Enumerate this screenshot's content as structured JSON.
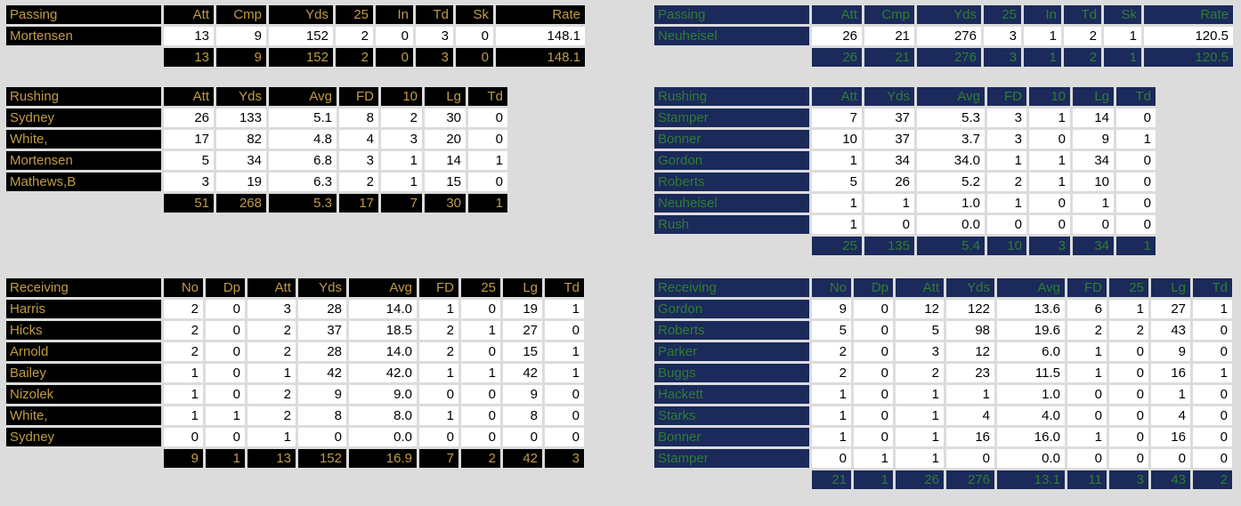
{
  "page": {
    "background_color": "#dcdcdc",
    "data_cell_background": "#ffffff",
    "data_cell_text_color": "#000000"
  },
  "teams": [
    {
      "side": "left",
      "theme": {
        "cell_background": "#000000",
        "text_color": "#c09c43"
      },
      "passing": {
        "title": "Passing",
        "columns": [
          "Att",
          "Cmp",
          "Yds",
          "25",
          "In",
          "Td",
          "Sk",
          "Rate"
        ],
        "rows": [
          {
            "name": "Mortensen",
            "values": [
              "13",
              "9",
              "152",
              "2",
              "0",
              "3",
              "0",
              "148.1"
            ]
          }
        ],
        "totals": [
          "13",
          "9",
          "152",
          "2",
          "0",
          "3",
          "0",
          "148.1"
        ]
      },
      "rushing": {
        "title": "Rushing",
        "columns": [
          "Att",
          "Yds",
          "Avg",
          "FD",
          "10",
          "Lg",
          "Td"
        ],
        "rows": [
          {
            "name": "Sydney",
            "values": [
              "26",
              "133",
              "5.1",
              "8",
              "2",
              "30",
              "0"
            ]
          },
          {
            "name": "White,",
            "values": [
              "17",
              "82",
              "4.8",
              "4",
              "3",
              "20",
              "0"
            ]
          },
          {
            "name": "Mortensen",
            "values": [
              "5",
              "34",
              "6.8",
              "3",
              "1",
              "14",
              "1"
            ]
          },
          {
            "name": "Mathews,B",
            "values": [
              "3",
              "19",
              "6.3",
              "2",
              "1",
              "15",
              "0"
            ]
          }
        ],
        "totals": [
          "51",
          "268",
          "5.3",
          "17",
          "7",
          "30",
          "1"
        ]
      },
      "receiving": {
        "title": "Receiving",
        "columns": [
          "No",
          "Dp",
          "Att",
          "Yds",
          "Avg",
          "FD",
          "25",
          "Lg",
          "Td"
        ],
        "rows": [
          {
            "name": "Harris",
            "values": [
              "2",
              "0",
              "3",
              "28",
              "14.0",
              "1",
              "0",
              "19",
              "1"
            ]
          },
          {
            "name": "Hicks",
            "values": [
              "2",
              "0",
              "2",
              "37",
              "18.5",
              "2",
              "1",
              "27",
              "0"
            ]
          },
          {
            "name": "Arnold",
            "values": [
              "2",
              "0",
              "2",
              "28",
              "14.0",
              "2",
              "0",
              "15",
              "1"
            ]
          },
          {
            "name": "Bailey",
            "values": [
              "1",
              "0",
              "1",
              "42",
              "42.0",
              "1",
              "1",
              "42",
              "1"
            ]
          },
          {
            "name": "Nizolek",
            "values": [
              "1",
              "0",
              "2",
              "9",
              "9.0",
              "0",
              "0",
              "9",
              "0"
            ]
          },
          {
            "name": "White,",
            "values": [
              "1",
              "1",
              "2",
              "8",
              "8.0",
              "1",
              "0",
              "8",
              "0"
            ]
          },
          {
            "name": "Sydney",
            "values": [
              "0",
              "0",
              "1",
              "0",
              "0.0",
              "0",
              "0",
              "0",
              "0"
            ]
          }
        ],
        "totals": [
          "9",
          "1",
          "13",
          "152",
          "16.9",
          "7",
          "2",
          "42",
          "3"
        ]
      }
    },
    {
      "side": "right",
      "theme": {
        "cell_background": "#1b2a5a",
        "text_color": "#2e7d33"
      },
      "passing": {
        "title": "Passing",
        "columns": [
          "Att",
          "Cmp",
          "Yds",
          "25",
          "In",
          "Td",
          "Sk",
          "Rate"
        ],
        "rows": [
          {
            "name": "Neuheisel",
            "values": [
              "26",
              "21",
              "276",
              "3",
              "1",
              "2",
              "1",
              "120.5"
            ]
          }
        ],
        "totals": [
          "26",
          "21",
          "276",
          "3",
          "1",
          "2",
          "1",
          "120.5"
        ]
      },
      "rushing": {
        "title": "Rushing",
        "columns": [
          "Att",
          "Yds",
          "Avg",
          "FD",
          "10",
          "Lg",
          "Td"
        ],
        "rows": [
          {
            "name": "Stamper",
            "values": [
              "7",
              "37",
              "5.3",
              "3",
              "1",
              "14",
              "0"
            ]
          },
          {
            "name": "Bonner",
            "values": [
              "10",
              "37",
              "3.7",
              "3",
              "0",
              "9",
              "1"
            ]
          },
          {
            "name": "Gordon",
            "values": [
              "1",
              "34",
              "34.0",
              "1",
              "1",
              "34",
              "0"
            ]
          },
          {
            "name": "Roberts",
            "values": [
              "5",
              "26",
              "5.2",
              "2",
              "1",
              "10",
              "0"
            ]
          },
          {
            "name": "Neuheisel",
            "values": [
              "1",
              "1",
              "1.0",
              "1",
              "0",
              "1",
              "0"
            ]
          },
          {
            "name": "Rush",
            "values": [
              "1",
              "0",
              "0.0",
              "0",
              "0",
              "0",
              "0"
            ]
          }
        ],
        "totals": [
          "25",
          "135",
          "5.4",
          "10",
          "3",
          "34",
          "1"
        ]
      },
      "receiving": {
        "title": "Receiving",
        "columns": [
          "No",
          "Dp",
          "Att",
          "Yds",
          "Avg",
          "FD",
          "25",
          "Lg",
          "Td"
        ],
        "rows": [
          {
            "name": "Gordon",
            "values": [
              "9",
              "0",
              "12",
              "122",
              "13.6",
              "6",
              "1",
              "27",
              "1"
            ]
          },
          {
            "name": "Roberts",
            "values": [
              "5",
              "0",
              "5",
              "98",
              "19.6",
              "2",
              "2",
              "43",
              "0"
            ]
          },
          {
            "name": "Parker",
            "values": [
              "2",
              "0",
              "3",
              "12",
              "6.0",
              "1",
              "0",
              "9",
              "0"
            ]
          },
          {
            "name": "Buggs",
            "values": [
              "2",
              "0",
              "2",
              "23",
              "11.5",
              "1",
              "0",
              "16",
              "1"
            ]
          },
          {
            "name": "Hackett",
            "values": [
              "1",
              "0",
              "1",
              "1",
              "1.0",
              "0",
              "0",
              "1",
              "0"
            ]
          },
          {
            "name": "Starks",
            "values": [
              "1",
              "0",
              "1",
              "4",
              "4.0",
              "0",
              "0",
              "4",
              "0"
            ]
          },
          {
            "name": "Bonner",
            "values": [
              "1",
              "0",
              "1",
              "16",
              "16.0",
              "1",
              "0",
              "16",
              "0"
            ]
          },
          {
            "name": "Stamper",
            "values": [
              "0",
              "1",
              "1",
              "0",
              "0.0",
              "0",
              "0",
              "0",
              "0"
            ]
          }
        ],
        "totals": [
          "21",
          "1",
          "26",
          "276",
          "13.1",
          "11",
          "3",
          "43",
          "2"
        ]
      }
    }
  ]
}
